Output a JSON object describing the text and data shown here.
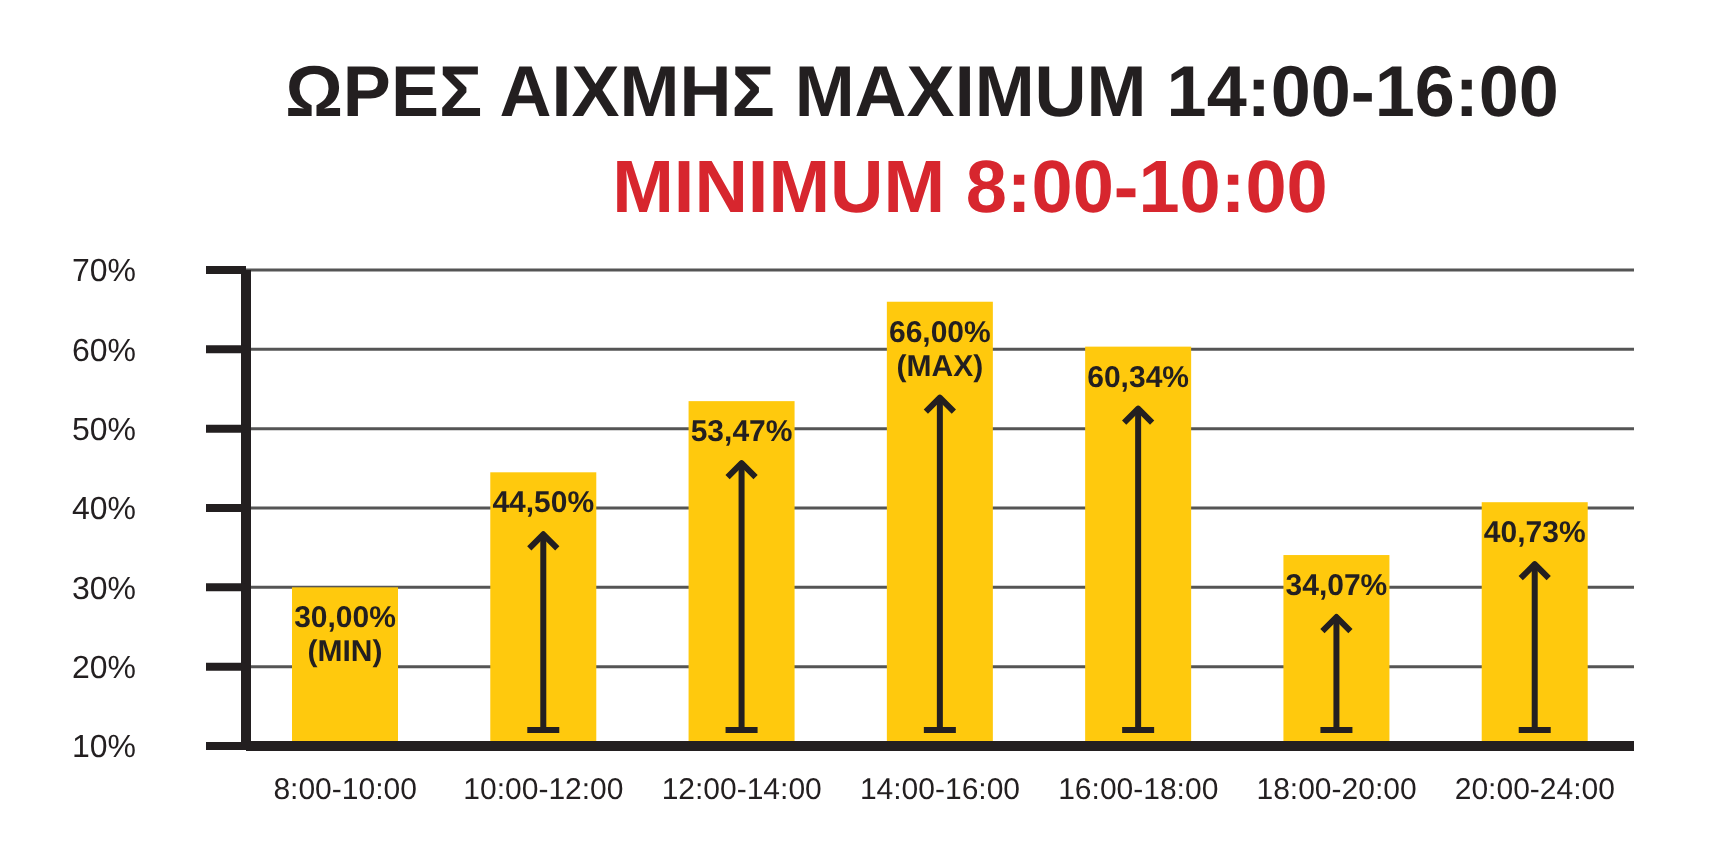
{
  "chart_data": {
    "type": "bar",
    "title": "ΩΡΕΣ ΑΙΧΜΗΣ MAXIMUM 14:00-16:00",
    "subtitle": "MINIMUM 8:00-10:00",
    "categories": [
      "8:00-10:00",
      "10:00-12:00",
      "12:00-14:00",
      "14:00-16:00",
      "16:00-18:00",
      "18:00-20:00",
      "20:00-24:00"
    ],
    "values": [
      30.0,
      44.5,
      53.47,
      66.0,
      60.34,
      34.07,
      40.73
    ],
    "value_labels": [
      "30,00%",
      "44,50%",
      "53,47%",
      "66,00%",
      "60,34%",
      "34,07%",
      "40,73%"
    ],
    "color": "#ffc90d",
    "ylim": [
      10,
      70
    ],
    "yticks": [
      {
        "value": 10,
        "label": "10%"
      },
      {
        "value": 20,
        "label": "20%"
      },
      {
        "value": 30,
        "label": "30%"
      },
      {
        "value": 40,
        "label": "40%"
      },
      {
        "value": 50,
        "label": "50%"
      },
      {
        "value": 60,
        "label": "60%"
      },
      {
        "value": 70,
        "label": "70%"
      }
    ],
    "grid": "y",
    "annotations": [
      {
        "text": "(MIN)",
        "x": "8:00-10:00",
        "y": 30
      },
      {
        "text": "(MAX)",
        "x": "14:00-16:00",
        "y": 66
      }
    ]
  }
}
